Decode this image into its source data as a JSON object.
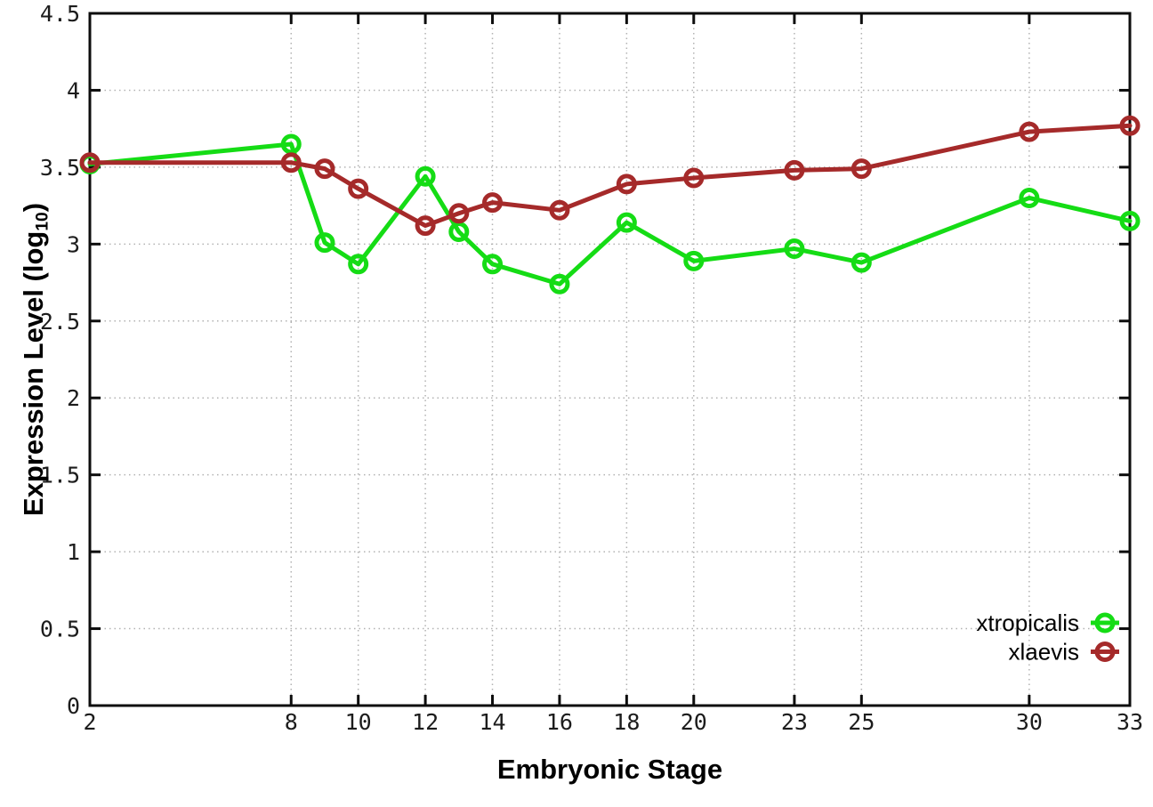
{
  "chart_data": {
    "type": "line",
    "title": "",
    "xlabel": "Embryonic Stage",
    "ylabel": "Expression Level (log10)",
    "ylabel_parts": {
      "prefix": "Expression Level (log",
      "subscript": "10",
      "suffix": ")"
    },
    "x": [
      2,
      8,
      9,
      10,
      12,
      13,
      14,
      16,
      18,
      20,
      23,
      25,
      30,
      33
    ],
    "series": [
      {
        "name": "xtropicalis",
        "color": "#15DC15",
        "values": [
          3.52,
          3.65,
          3.01,
          2.87,
          3.44,
          3.08,
          2.87,
          2.74,
          3.14,
          2.89,
          2.97,
          2.88,
          3.3,
          3.15
        ]
      },
      {
        "name": "xlaevis",
        "color": "#A52A2A",
        "values": [
          3.53,
          3.53,
          3.49,
          3.36,
          3.12,
          3.2,
          3.27,
          3.22,
          3.39,
          3.43,
          3.48,
          3.49,
          3.73,
          3.77
        ]
      }
    ],
    "xticks": [
      2,
      8,
      10,
      12,
      14,
      16,
      18,
      20,
      23,
      25,
      30,
      33
    ],
    "yticks": [
      0,
      0.5,
      1,
      1.5,
      2,
      2.5,
      3,
      3.5,
      4,
      4.5
    ],
    "xlim": [
      2,
      33
    ],
    "ylim": [
      0,
      4.5
    ],
    "grid": true,
    "legend_position": "inside-bottom-right",
    "marker": "open-circle"
  },
  "style": {
    "background": "#ffffff",
    "axis_color": "#0d0d0d",
    "grid_color": "#b2b2b2",
    "tick_label_color": "#1c1c1c",
    "legend_text_color": "#000000"
  }
}
